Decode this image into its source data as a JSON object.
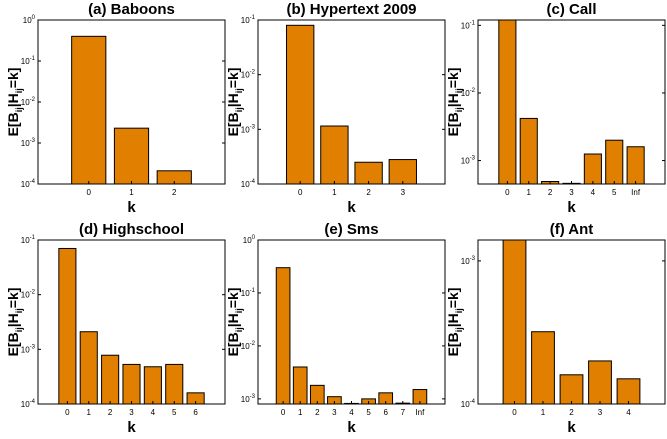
{
  "figure": {
    "bar_color": "#e07f00",
    "ylabel_main": "E[B",
    "ylabel_sub1": "ij",
    "ylabel_mid": "|H",
    "ylabel_sub2": "ij",
    "ylabel_end": "=k]",
    "xlabel": "k"
  },
  "chart_data": [
    {
      "type": "bar",
      "title": "(a)  Baboons",
      "xlabel": "k",
      "ylabel": "E[Bij|Hij=k]",
      "yscale": "log",
      "ylim": [
        0.0001,
        1
      ],
      "ytick_exponents": [
        -4,
        -3,
        -2,
        -1,
        0
      ],
      "categories": [
        "0",
        "1",
        "2"
      ],
      "values": [
        0.4,
        0.0023,
        0.00021
      ]
    },
    {
      "type": "bar",
      "title": "(b)  Hypertext 2009",
      "xlabel": "k",
      "ylabel": "E[Bij|Hij=k]",
      "yscale": "log",
      "ylim": [
        0.0001,
        0.1
      ],
      "ytick_exponents": [
        -4,
        -3,
        -2,
        -1
      ],
      "categories": [
        "0",
        "1",
        "2",
        "3"
      ],
      "values": [
        0.08,
        0.00115,
        0.00025,
        0.00028
      ]
    },
    {
      "type": "bar",
      "title": "(c)  Call",
      "xlabel": "k",
      "ylabel": "E[Bij|Hij=k]",
      "yscale": "log",
      "ylim": [
        0.00045,
        0.12
      ],
      "ytick_exponents": [
        -3,
        -2,
        -1
      ],
      "categories": [
        "0",
        "1",
        "2",
        "3",
        "4",
        "5",
        "Inf"
      ],
      "values": [
        0.12,
        0.0042,
        0.00049,
        0.00046,
        0.00125,
        0.002,
        0.0016
      ]
    },
    {
      "type": "bar",
      "title": "(d)  Highschool",
      "xlabel": "k",
      "ylabel": "E[Bij|Hij=k]",
      "yscale": "log",
      "ylim": [
        0.0001,
        0.1
      ],
      "ytick_exponents": [
        -4,
        -3,
        -2,
        -1
      ],
      "categories": [
        "0",
        "1",
        "2",
        "3",
        "4",
        "5",
        "6"
      ],
      "values": [
        0.07,
        0.0021,
        0.00078,
        0.00053,
        0.00048,
        0.00053,
        0.00016
      ]
    },
    {
      "type": "bar",
      "title": "(e)  Sms",
      "xlabel": "k",
      "ylabel": "E[Bij|Hij=k]",
      "yscale": "log",
      "ylim": [
        0.0008,
        1
      ],
      "ytick_exponents": [
        -3,
        -2,
        -1,
        0
      ],
      "categories": [
        "0",
        "1",
        "2",
        "3",
        "4",
        "5",
        "6",
        "7",
        "Inf"
      ],
      "values": [
        0.3,
        0.004,
        0.0018,
        0.0011,
        0.00082,
        0.001,
        0.0013,
        0.00083,
        0.0015
      ]
    },
    {
      "type": "bar",
      "title": "(f)  Ant",
      "xlabel": "k",
      "ylabel": "E[Bij|Hij=k]",
      "yscale": "log",
      "ylim": [
        0.0001,
        0.0014
      ],
      "ytick_exponents": [
        -4,
        -3
      ],
      "categories": [
        "0",
        "1",
        "2",
        "3",
        "4"
      ],
      "values": [
        0.0014,
        0.00032,
        0.00016,
        0.0002,
        0.00015
      ]
    }
  ]
}
